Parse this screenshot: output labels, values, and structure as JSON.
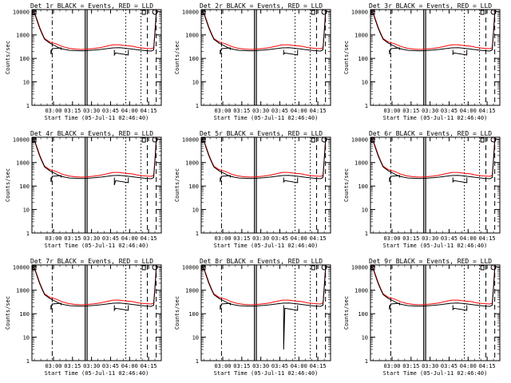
{
  "chart_data": {
    "type": "line",
    "layout": "3x3 grid of log-scale time-series panels",
    "panels": [
      {
        "title": "Det 1r BLACK = Events, RED = LLD",
        "events_dip_low": 140
      },
      {
        "title": "Det 2r BLACK = Events, RED = LLD",
        "events_dip_low": 150
      },
      {
        "title": "Det 3r BLACK = Events, RED = LLD",
        "events_dip_low": 150
      },
      {
        "title": "Det 4r BLACK = Events, RED = LLD",
        "events_dip_low": 110
      },
      {
        "title": "Det 5r BLACK = Events, RED = LLD",
        "events_dip_low": 150
      },
      {
        "title": "Det 6r BLACK = Events, RED = LLD",
        "events_dip_low": 150
      },
      {
        "title": "Det 7r BLACK = Events, RED = LLD",
        "events_dip_low": 140
      },
      {
        "title": "Det 8r BLACK = Events, RED = LLD",
        "events_dip_low": 3
      },
      {
        "title": "Det 9r BLACK = Events, RED = LLD",
        "events_dip_low": 150
      }
    ],
    "xlabel": "Start Time (05-Jul-11 02:46:40)",
    "ylabel": "Counts/sec",
    "x_ticks": [
      "03:00",
      "03:15",
      "03:30",
      "03:45",
      "04:00",
      "04:15"
    ],
    "x_tick_minutes": [
      3,
      18,
      33,
      48,
      63,
      78
    ],
    "xlim_minutes": [
      -14,
      88
    ],
    "y_ticks": [
      "1",
      "10",
      "100",
      "1000",
      "10000"
    ],
    "ylim": [
      1,
      12000
    ],
    "y_scale": "log",
    "series": [
      {
        "name": "LLD",
        "color": "#ff0000",
        "x_minutes": [
          -14,
          -12,
          -10,
          -8,
          -6,
          -4,
          0,
          5,
          10,
          15,
          20,
          25,
          30,
          35,
          40,
          45,
          50,
          55,
          60,
          65,
          70,
          75,
          80,
          82,
          83,
          84,
          85
        ],
        "values": [
          11000,
          9000,
          4500,
          2200,
          1200,
          700,
          500,
          420,
          320,
          270,
          250,
          240,
          250,
          265,
          290,
          330,
          380,
          380,
          350,
          330,
          290,
          270,
          260,
          280,
          1500,
          8000,
          11000
        ]
      },
      {
        "name": "Events",
        "color": "#000000",
        "x_minutes": [
          -14,
          -12,
          -10,
          -8,
          -6,
          -4,
          0,
          4,
          8,
          12,
          16,
          20,
          25,
          30,
          35,
          40,
          45,
          50,
          55,
          60,
          65,
          70,
          75,
          80,
          82,
          83,
          84,
          85
        ],
        "values": [
          11000,
          8500,
          4000,
          2000,
          1100,
          650,
          450,
          350,
          270,
          240,
          220,
          215,
          210,
          215,
          225,
          240,
          260,
          280,
          285,
          270,
          250,
          230,
          215,
          205,
          230,
          1300,
          7500,
          10500
        ]
      }
    ],
    "events_gaps": [
      {
        "x_minutes": [
          1,
          9
        ],
        "values": [
          150,
          280
        ]
      },
      {
        "x_minutes": [
          51,
          62
        ],
        "values": [
          170,
          130
        ]
      }
    ],
    "vlines": [
      {
        "x_minute": 2,
        "style": "dashdot"
      },
      {
        "x_minute": 28,
        "style": "solid"
      },
      {
        "x_minute": 29.5,
        "style": "solid"
      },
      {
        "x_minute": 60,
        "style": "dotted"
      },
      {
        "x_minute": 72,
        "style": "dotted"
      },
      {
        "x_minute": 77,
        "style": "dashed"
      },
      {
        "x_minute": 84,
        "style": "dashed"
      }
    ]
  }
}
